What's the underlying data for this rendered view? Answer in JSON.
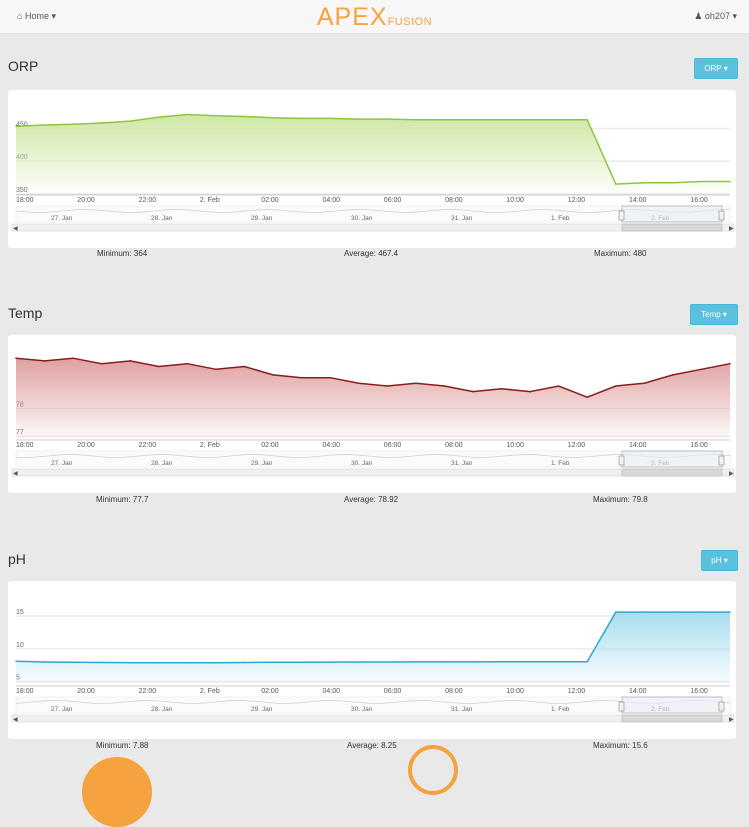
{
  "header": {
    "home_label": "Home",
    "home_icon": "home-icon",
    "logo_main": "APEX",
    "logo_sub": "FUSION",
    "user_label": "oh207",
    "user_icon": "user-icon",
    "accent_color": "#f5a340"
  },
  "time_axis": [
    "18:00",
    "20:00",
    "22:00",
    "2. Feb",
    "02:00",
    "04:00",
    "06:00",
    "08:00",
    "10:00",
    "12:00",
    "14:00",
    "16:00"
  ],
  "navigator_axis": [
    "27. Jan",
    "28. Jan",
    "29. Jan",
    "30. Jan",
    "31. Jan",
    "1. Feb",
    "2. Feb"
  ],
  "sections": [
    {
      "key": "orp",
      "title": "ORP",
      "button": "ORP",
      "min_label": "Minimum: 364",
      "avg_label": "Average: 467.4",
      "max_label": "Maximum: 480"
    },
    {
      "key": "temp",
      "title": "Temp",
      "button": "Temp",
      "min_label": "Minimum: 77.7",
      "avg_label": "Average: 78.92",
      "max_label": "Maximum: 79.8"
    },
    {
      "key": "ph",
      "title": "pH",
      "button": "pH",
      "min_label": "Minimum: 7.88",
      "avg_label": "Average: 8.25",
      "max_label": "Maximum: 15.6"
    }
  ],
  "chart_data": [
    {
      "type": "area",
      "key": "orp",
      "title": "ORP",
      "x": [
        "17:00",
        "18:00",
        "19:00",
        "20:00",
        "21:00",
        "22:00",
        "23:00",
        "2. Feb 00:00",
        "01:00",
        "02:00",
        "03:00",
        "04:00",
        "05:00",
        "06:00",
        "07:00",
        "08:00",
        "09:00",
        "10:00",
        "11:00",
        "12:00",
        "12:30",
        "13:00",
        "14:00",
        "15:00",
        "16:00",
        "17:00"
      ],
      "values": [
        453,
        455,
        456,
        458,
        461,
        467,
        471,
        469,
        468,
        466,
        465,
        465,
        464,
        464,
        463,
        463,
        463,
        463,
        463,
        463,
        463,
        365,
        367,
        367,
        369,
        369
      ],
      "ylim": [
        350,
        490
      ],
      "yticks": [
        350,
        400,
        450
      ],
      "color": "#8dc63f",
      "fill": "#cfe7a4"
    },
    {
      "type": "area",
      "key": "temp",
      "title": "Temp",
      "x": [
        "17:00",
        "18:00",
        "19:00",
        "20:00",
        "21:00",
        "22:00",
        "23:00",
        "2. Feb 00:00",
        "01:00",
        "02:00",
        "03:00",
        "04:00",
        "05:00",
        "06:00",
        "07:00",
        "08:00",
        "09:00",
        "10:00",
        "11:00",
        "12:00",
        "12:30",
        "13:00",
        "14:00",
        "15:00",
        "16:00",
        "17:00"
      ],
      "values": [
        79.8,
        79.7,
        79.8,
        79.6,
        79.7,
        79.5,
        79.6,
        79.4,
        79.5,
        79.2,
        79.1,
        79.1,
        78.9,
        78.8,
        78.9,
        78.8,
        78.6,
        78.7,
        78.6,
        78.8,
        78.4,
        78.8,
        78.9,
        79.2,
        79.4,
        79.6
      ],
      "ylim": [
        76.9,
        80.2
      ],
      "yticks": [
        77,
        78
      ],
      "color": "#8b1c1c",
      "fill": "#dfa0a0"
    },
    {
      "type": "area",
      "key": "ph",
      "title": "pH",
      "x": [
        "17:00",
        "18:00",
        "19:00",
        "20:00",
        "21:00",
        "22:00",
        "23:00",
        "2. Feb 00:00",
        "01:00",
        "02:00",
        "03:00",
        "04:00",
        "05:00",
        "06:00",
        "07:00",
        "08:00",
        "09:00",
        "10:00",
        "11:00",
        "12:00",
        "12:30",
        "13:00",
        "14:00",
        "15:00",
        "16:00",
        "17:00"
      ],
      "values": [
        8.1,
        8.0,
        7.95,
        7.93,
        7.9,
        7.88,
        7.9,
        7.9,
        7.92,
        7.95,
        7.96,
        7.98,
        8.0,
        8.0,
        8.01,
        8.02,
        8.02,
        8.03,
        8.04,
        8.05,
        8.05,
        15.6,
        15.6,
        15.6,
        15.6,
        15.6
      ],
      "ylim": [
        4.5,
        18.5
      ],
      "yticks": [
        5,
        10,
        15
      ],
      "color": "#2ba8cf",
      "fill": "#a8dcee"
    }
  ]
}
